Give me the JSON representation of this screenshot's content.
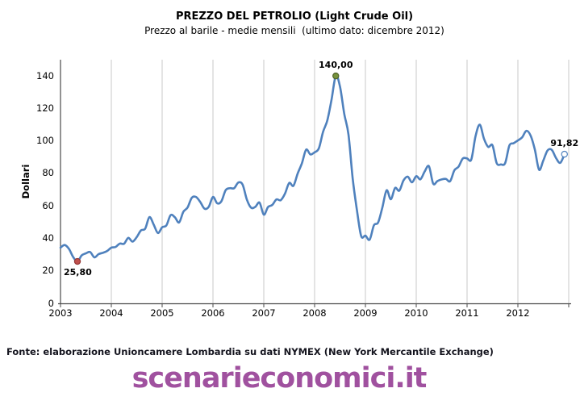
{
  "header": {
    "title": "PREZZO DEL PETROLIO (Light Crude Oil)",
    "subtitle": "Prezzo al barile - medie mensili  (ultimo dato: dicembre 2012)"
  },
  "footer": {
    "source": "Fonte: elaborazione Unioncamere Lombardia su dati NYMEX (New York Mercantile Exchange)",
    "watermark": "scenarieconomici.it"
  },
  "colors": {
    "line": "#4F81BD",
    "marker_min": "#C0504D",
    "marker_max": "#77933C",
    "marker_last_stroke": "#4F81BD",
    "watermark": "#A0519F",
    "gridline": "#C8C8C8",
    "axis": "#4A4A4A"
  },
  "chart_data": {
    "type": "line",
    "title": "PREZZO DEL PETROLIO (Light Crude Oil)",
    "subtitle": "Prezzo al barile - medie mensili  (ultimo dato: dicembre 2012)",
    "xlabel": "",
    "ylabel": "Dollari",
    "ylim": [
      0,
      150
    ],
    "yticks": [
      0,
      20,
      40,
      60,
      80,
      100,
      120,
      140
    ],
    "xticks": [
      "2003",
      "2004",
      "2005",
      "2006",
      "2007",
      "2008",
      "2009",
      "2010",
      "2011",
      "2012"
    ],
    "points_per_year": 12,
    "grid": {
      "vertical": true,
      "horizontal": false
    },
    "legend": "none",
    "series": [
      {
        "color": "#4F81BD",
        "values": [
          34.3,
          35.9,
          33.5,
          28.5,
          25.8,
          29.5,
          30.8,
          31.6,
          28.3,
          30.3,
          31.1,
          32.2,
          34.3,
          34.7,
          36.8,
          36.7,
          40.3,
          38.0,
          40.8,
          44.9,
          46.0,
          53.1,
          48.5,
          43.3,
          46.8,
          48.0,
          54.3,
          53.0,
          49.8,
          56.3,
          59.0,
          65.0,
          65.5,
          62.4,
          58.3,
          59.4,
          65.5,
          61.6,
          62.9,
          69.7,
          70.9,
          70.9,
          74.4,
          73.1,
          63.9,
          58.9,
          59.4,
          62.0,
          54.6,
          59.3,
          60.6,
          64.0,
          63.5,
          67.5,
          74.1,
          72.4,
          79.9,
          86.2,
          94.6,
          91.7,
          93.0,
          95.4,
          105.6,
          112.6,
          125.4,
          140.0,
          133.4,
          116.7,
          103.9,
          76.7,
          57.3,
          41.4,
          41.7,
          39.2,
          48.0,
          49.8,
          59.0,
          69.6,
          64.1,
          71.0,
          69.4,
          75.7,
          78.0,
          74.5,
          78.3,
          76.4,
          81.2,
          84.4,
          73.7,
          75.3,
          76.3,
          76.6,
          75.2,
          81.9,
          84.2,
          89.2,
          89.2,
          88.6,
          102.9,
          110.0,
          101.3,
          96.3,
          97.3,
          86.3,
          85.5,
          86.4,
          97.2,
          98.6,
          100.3,
          102.2,
          106.2,
          103.3,
          94.7,
          82.3,
          87.9,
          94.1,
          94.5,
          89.5,
          86.5,
          91.82
        ]
      }
    ],
    "annotations": [
      {
        "label": "25,80",
        "point_index": 4,
        "value": 25.8,
        "marker": "filled",
        "marker_fill": "#C0504D",
        "marker_stroke": "#943634",
        "label_position": "below-left"
      },
      {
        "label": "140,00",
        "point_index": 65,
        "value": 140.0,
        "marker": "filled",
        "marker_fill": "#77933C",
        "marker_stroke": "#4F6228",
        "label_position": "above"
      },
      {
        "label": "91,82",
        "point_index": 119,
        "value": 91.82,
        "marker": "open",
        "marker_fill": "#FFFFFF",
        "marker_stroke": "#4F81BD",
        "label_position": "above"
      }
    ]
  }
}
